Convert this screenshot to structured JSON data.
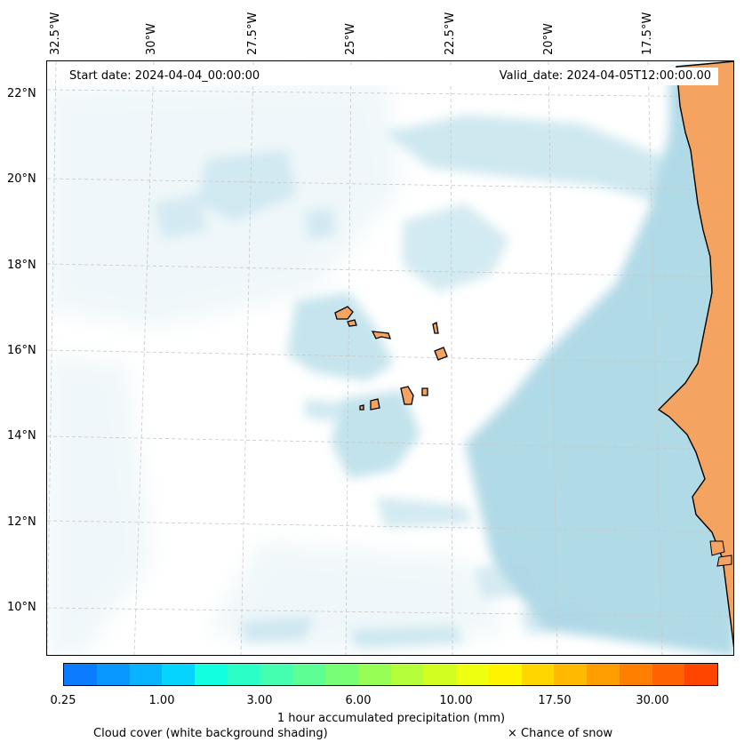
{
  "header": {
    "start_date": "Start date: 2024-04-04_00:00:00",
    "valid_date": "Valid_date: 2024-04-05T12:00:00.00"
  },
  "axes": {
    "lon_labels": [
      "32.5°W",
      "30°W",
      "27.5°W",
      "25°W",
      "22.5°W",
      "20°W",
      "17.5°W"
    ],
    "lat_labels": [
      "22°N",
      "20°N",
      "18°N",
      "16°N",
      "14°N",
      "12°N",
      "10°N"
    ]
  },
  "colorbar": {
    "colors": [
      "#0a7cff",
      "#0998ff",
      "#08b4ff",
      "#05d4ff",
      "#12ffe0",
      "#2bffc7",
      "#45ffb0",
      "#5dff94",
      "#78ff74",
      "#96ff55",
      "#b4ff3a",
      "#d2ff22",
      "#eeff10",
      "#fff400",
      "#ffd600",
      "#ffba00",
      "#ff9e00",
      "#ff8000",
      "#ff6200",
      "#ff4500"
    ],
    "tick_labels": [
      "0.25",
      "1.00",
      "3.00",
      "6.00",
      "10.00",
      "17.50",
      "30.00"
    ],
    "label": "1 hour accumulated precipitation (mm)"
  },
  "legend": {
    "cloud_note": "Cloud cover (white background shading)",
    "snow_note": "× Chance of snow"
  },
  "colors": {
    "land": "#f4a460",
    "cloud": "#add8e6",
    "grid": "#c8c8c8"
  }
}
